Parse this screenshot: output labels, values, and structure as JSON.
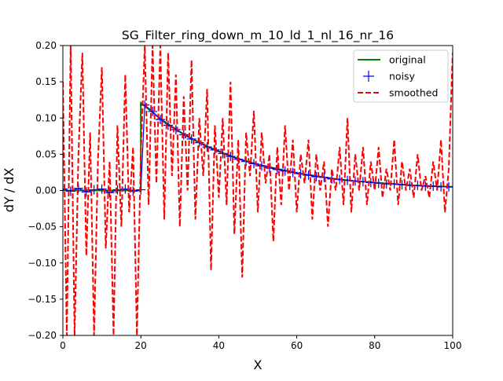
{
  "chart_data": {
    "type": "line",
    "title": "SG_Filter_ring_down_m_10_ld_1_nl_16_nr_16",
    "xlabel": "X",
    "ylabel": "dY / dX",
    "xlim": [
      0,
      100
    ],
    "ylim": [
      -0.2,
      0.2
    ],
    "xticks": [
      0,
      20,
      40,
      60,
      80,
      100
    ],
    "xtick_labels": [
      "0",
      "20",
      "40",
      "60",
      "80",
      "100"
    ],
    "yticks": [
      -0.2,
      -0.15,
      -0.1,
      -0.05,
      0.0,
      0.05,
      0.1,
      0.15,
      0.2
    ],
    "ytick_labels": [
      "−0.20",
      "−0.15",
      "−0.10",
      "−0.05",
      "0.00",
      "0.05",
      "0.10",
      "0.15",
      "0.20"
    ],
    "grid": false,
    "legend_position": "top-right",
    "legend": [
      "original",
      "noisy",
      "smoothed"
    ],
    "colors": {
      "original": "#008000",
      "noisy": "#0000ff",
      "smoothed": "#ff0000"
    },
    "series": [
      {
        "name": "original",
        "style": "solid",
        "x": [
          0,
          20,
          20,
          25,
          30,
          35,
          40,
          45,
          50,
          55,
          60,
          65,
          70,
          75,
          80,
          85,
          90,
          95,
          100
        ],
        "y": [
          0,
          0,
          0.121,
          0.099,
          0.081,
          0.066,
          0.054,
          0.044,
          0.036,
          0.03,
          0.024,
          0.02,
          0.016,
          0.013,
          0.011,
          0.009,
          0.007,
          0.006,
          0.005
        ]
      },
      {
        "name": "noisy",
        "style": "markers",
        "marker": "+",
        "x": [
          0,
          2,
          4,
          6,
          8,
          10,
          12,
          14,
          16,
          18,
          20,
          21,
          23,
          25,
          27,
          29,
          31,
          33,
          35,
          37,
          39,
          41,
          43,
          45,
          47,
          49,
          51,
          53,
          55,
          57,
          59,
          61,
          63,
          65,
          67,
          69,
          71,
          73,
          75,
          77,
          79,
          81,
          83,
          85,
          87,
          89,
          91,
          93,
          95,
          97,
          99
        ],
        "y": [
          0.002,
          -0.001,
          0.003,
          -0.002,
          0.001,
          0.002,
          -0.003,
          0.001,
          0.002,
          -0.001,
          0.001,
          0.118,
          0.109,
          0.098,
          0.09,
          0.084,
          0.077,
          0.071,
          0.066,
          0.06,
          0.056,
          0.051,
          0.047,
          0.043,
          0.04,
          0.037,
          0.034,
          0.031,
          0.029,
          0.027,
          0.025,
          0.023,
          0.021,
          0.019,
          0.018,
          0.016,
          0.015,
          0.014,
          0.013,
          0.012,
          0.011,
          0.01,
          0.009,
          0.009,
          0.008,
          0.007,
          0.007,
          0.006,
          0.006,
          0.005,
          0.005
        ]
      },
      {
        "name": "smoothed",
        "style": "dashed",
        "x": [
          0,
          1,
          2,
          3,
          4,
          5,
          6,
          7,
          8,
          9,
          10,
          11,
          12,
          13,
          14,
          15,
          16,
          17,
          18,
          19,
          20,
          21,
          22,
          23,
          24,
          25,
          26,
          27,
          28,
          29,
          30,
          31,
          32,
          33,
          34,
          35,
          36,
          37,
          38,
          39,
          40,
          41,
          42,
          43,
          44,
          45,
          46,
          47,
          48,
          49,
          50,
          51,
          52,
          53,
          54,
          55,
          56,
          57,
          58,
          59,
          60,
          61,
          62,
          63,
          64,
          65,
          66,
          67,
          68,
          69,
          70,
          71,
          72,
          73,
          74,
          75,
          76,
          77,
          78,
          79,
          80,
          81,
          82,
          83,
          84,
          85,
          86,
          87,
          88,
          89,
          90,
          91,
          92,
          93,
          94,
          95,
          96,
          97,
          98,
          99,
          100
        ],
        "y": [
          0.15,
          -0.2,
          0.2,
          -0.2,
          0.05,
          0.19,
          -0.09,
          0.08,
          -0.2,
          0.04,
          0.17,
          -0.08,
          0.04,
          -0.2,
          0.09,
          -0.05,
          0.16,
          -0.03,
          0.06,
          -0.2,
          0.05,
          0.2,
          -0.02,
          0.2,
          0.01,
          0.2,
          -0.04,
          0.19,
          0.02,
          0.16,
          -0.05,
          0.13,
          0.0,
          0.18,
          -0.04,
          0.1,
          0.02,
          0.14,
          -0.11,
          0.09,
          -0.01,
          0.1,
          -0.02,
          0.15,
          -0.06,
          0.07,
          -0.12,
          0.08,
          0.02,
          0.11,
          -0.03,
          0.08,
          0.01,
          0.05,
          -0.07,
          0.06,
          -0.02,
          0.09,
          0.0,
          0.07,
          -0.03,
          0.05,
          0.01,
          0.07,
          -0.04,
          0.05,
          0.0,
          0.04,
          -0.05,
          0.03,
          0.0,
          0.06,
          -0.02,
          0.1,
          -0.03,
          0.05,
          0.0,
          0.06,
          -0.02,
          0.04,
          0.0,
          0.06,
          -0.01,
          0.03,
          0.0,
          0.07,
          -0.02,
          0.04,
          0.0,
          0.03,
          -0.01,
          0.05,
          0.0,
          0.02,
          -0.01,
          0.04,
          0.0,
          0.07,
          -0.03,
          0.03,
          0.19
        ]
      }
    ]
  }
}
